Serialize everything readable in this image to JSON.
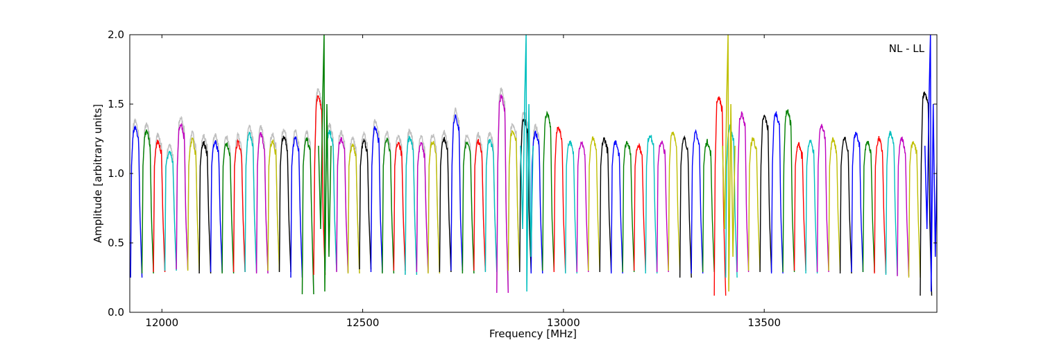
{
  "chart_data": {
    "type": "line",
    "title": "",
    "xlabel": "Frequency [MHz]",
    "ylabel": "Amplitude [arbitrary units]",
    "xlim": [
      11920,
      13930
    ],
    "ylim": [
      0.0,
      2.0
    ],
    "x_ticks": [
      12000,
      12500,
      13000,
      13500
    ],
    "y_ticks": [
      0.0,
      0.5,
      1.0,
      1.5,
      2.0
    ],
    "y_tick_labels": [
      "0.0",
      "0.5",
      "1.0",
      "1.5",
      "2.0"
    ],
    "grid": false,
    "annotation": "NL - LL",
    "reference_color": "#bfbfbf",
    "color_cycle": [
      "#0000ff",
      "#008000",
      "#ff0000",
      "#00bfbf",
      "#bf00bf",
      "#bfbf00",
      "#000000"
    ],
    "subbands": {
      "start_frequency": 11922,
      "width": 28.5,
      "count": 70,
      "plateau_levels": [
        1.3,
        1.27,
        1.2,
        1.13,
        1.32,
        1.21,
        1.19,
        1.2,
        1.18,
        1.19,
        1.26,
        1.25,
        1.2,
        1.24,
        1.22,
        1.21,
        1.52,
        1.27,
        1.22,
        1.18,
        1.2,
        1.3,
        1.21,
        1.2,
        1.23,
        1.18,
        1.2,
        1.22,
        1.38,
        1.2,
        1.2,
        1.21,
        1.52,
        1.28,
        1.36,
        1.26,
        1.4,
        1.3,
        1.2,
        1.2,
        1.22,
        1.22,
        1.2,
        1.2,
        1.18,
        1.25,
        1.2,
        1.27,
        1.22,
        1.26,
        1.2,
        1.52,
        1.3,
        1.4,
        1.22,
        1.38,
        1.4,
        1.42,
        1.18,
        1.2,
        1.32,
        1.21,
        1.22,
        1.26,
        1.2,
        1.22,
        1.26,
        1.22,
        1.2,
        1.55
      ],
      "dip_levels": [
        0.25,
        0.28,
        0.29,
        0.3,
        0.31,
        0.3,
        0.28,
        0.29,
        0.28,
        0.29,
        0.29,
        0.28,
        0.3,
        0.29,
        0.25,
        0.13,
        0.27,
        0.3,
        0.29,
        0.28,
        0.31,
        0.29,
        0.28,
        0.3,
        0.27,
        0.29,
        0.28,
        0.29,
        0.3,
        0.28,
        0.3,
        0.29,
        0.14,
        0.3,
        0.29,
        0.28,
        0.3,
        0.29,
        0.28,
        0.29,
        0.3,
        0.29,
        0.28,
        0.29,
        0.3,
        0.28,
        0.29,
        0.3,
        0.25,
        0.28,
        0.29,
        0.12,
        0.25,
        0.29,
        0.3,
        0.29,
        0.28,
        0.29,
        0.3,
        0.28,
        0.29,
        0.3,
        0.28,
        0.29,
        0.29,
        0.28,
        0.27,
        0.26,
        0.25,
        0.12
      ]
    },
    "spikes": [
      {
        "x": 12404,
        "y": 2.0,
        "color": "#008000"
      },
      {
        "x": 12907,
        "y": 2.0,
        "color": "#00bfbf"
      },
      {
        "x": 13410,
        "y": 2.0,
        "color": "#bfbf00"
      },
      {
        "x": 13914,
        "y": 2.0,
        "color": "#0000ff"
      }
    ]
  }
}
